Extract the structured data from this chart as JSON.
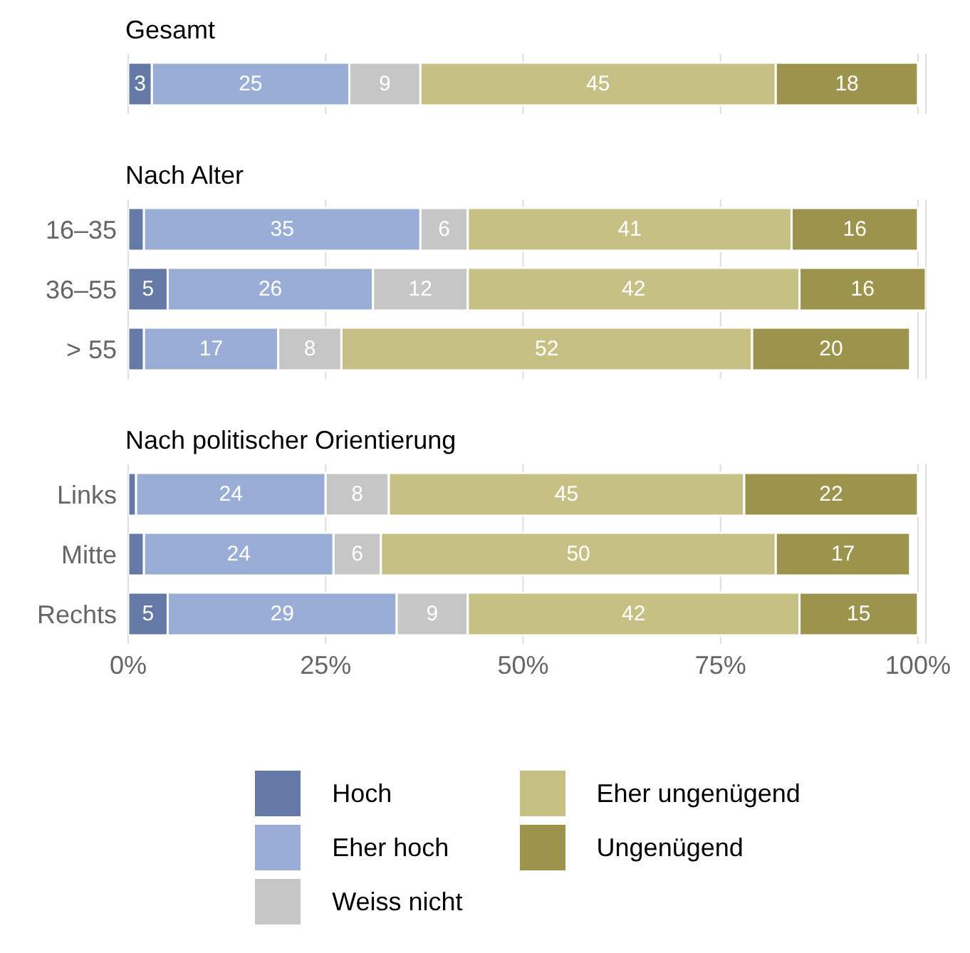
{
  "chart_data": [
    {
      "type": "bar",
      "title": "Gesamt",
      "orientation": "horizontal",
      "stacked": true,
      "categories": [
        null
      ],
      "xlim": [
        0,
        101
      ],
      "xticks": [
        {
          "value": 0,
          "label": null
        },
        {
          "value": 25,
          "label": null
        },
        {
          "value": 50,
          "label": null
        },
        {
          "value": 75,
          "label": null
        },
        {
          "value": 100,
          "label": null
        }
      ],
      "grid": "x",
      "legend": false,
      "tick_labels": false,
      "series": [
        {
          "color": "#6579a6",
          "values": [
            3
          ],
          "value_labels": [
            "3"
          ]
        },
        {
          "color": "#99add6",
          "values": [
            25
          ],
          "value_labels": [
            "25"
          ]
        },
        {
          "color": "#c6c6c6",
          "values": [
            9
          ],
          "value_labels": [
            "9"
          ]
        },
        {
          "color": "#c6c085",
          "values": [
            45
          ],
          "value_labels": [
            "45"
          ]
        },
        {
          "color": "#9c934c",
          "values": [
            18
          ],
          "value_labels": [
            "18"
          ]
        }
      ]
    },
    {
      "type": "bar",
      "title": "Nach Alter",
      "orientation": "horizontal",
      "stacked": true,
      "categories": [
        "16–35",
        "36–55",
        "> 55"
      ],
      "xlim": [
        0,
        101
      ],
      "xticks": [
        {
          "value": 0,
          "label": null
        },
        {
          "value": 25,
          "label": null
        },
        {
          "value": 50,
          "label": null
        },
        {
          "value": 75,
          "label": null
        },
        {
          "value": 100,
          "label": null
        }
      ],
      "grid": "x",
      "legend": false,
      "tick_labels": "y",
      "series": [
        {
          "color": "#6579a6",
          "values": [
            2,
            5,
            2
          ],
          "value_labels": [
            null,
            "5",
            null
          ]
        },
        {
          "color": "#99add6",
          "values": [
            35,
            26,
            17
          ],
          "value_labels": [
            "35",
            "26",
            "17"
          ]
        },
        {
          "color": "#c6c6c6",
          "values": [
            6,
            12,
            8
          ],
          "value_labels": [
            "6",
            "12",
            "8"
          ]
        },
        {
          "color": "#c6c085",
          "values": [
            41,
            42,
            52
          ],
          "value_labels": [
            "41",
            "42",
            "52"
          ]
        },
        {
          "color": "#9c934c",
          "values": [
            16,
            16,
            20
          ],
          "value_labels": [
            "16",
            "16",
            "20"
          ]
        }
      ]
    },
    {
      "type": "bar",
      "title": "Nach politischer Orientierung",
      "orientation": "horizontal",
      "stacked": true,
      "categories": [
        "Links",
        "Mitte",
        "Rechts"
      ],
      "xlim": [
        0,
        101
      ],
      "xticks": [
        {
          "value": 0,
          "label": "0%"
        },
        {
          "value": 25,
          "label": "25%"
        },
        {
          "value": 50,
          "label": "50%"
        },
        {
          "value": 75,
          "label": "75%"
        },
        {
          "value": 100,
          "label": "100%"
        }
      ],
      "grid": "x",
      "legend": "bottom",
      "series": [
        {
          "name": "Hoch",
          "color": "#6579a6",
          "values": [
            1,
            2,
            5
          ],
          "value_labels": [
            null,
            null,
            "5"
          ]
        },
        {
          "name": "Eher hoch",
          "color": "#99add6",
          "values": [
            24,
            24,
            29
          ],
          "value_labels": [
            "24",
            "24",
            "29"
          ]
        },
        {
          "name": "Weiss nicht",
          "color": "#c6c6c6",
          "values": [
            8,
            6,
            9
          ],
          "value_labels": [
            "8",
            "6",
            "9"
          ]
        },
        {
          "name": "Eher ungenügend",
          "color": "#c6c085",
          "values": [
            45,
            50,
            42
          ],
          "value_labels": [
            "45",
            "50",
            "42"
          ]
        },
        {
          "name": "Ungenügend",
          "color": "#9c934c",
          "values": [
            22,
            17,
            15
          ],
          "value_labels": [
            "22",
            "17",
            "15"
          ]
        }
      ]
    }
  ]
}
